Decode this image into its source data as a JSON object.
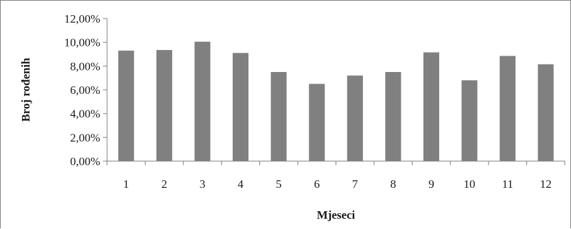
{
  "chart_data": {
    "type": "bar",
    "title": "",
    "xlabel": "Mjeseci",
    "ylabel": "Broj rođenih",
    "categories": [
      "1",
      "2",
      "3",
      "4",
      "5",
      "6",
      "7",
      "8",
      "9",
      "10",
      "11",
      "12"
    ],
    "values": [
      9.3,
      9.35,
      10.05,
      9.1,
      7.5,
      6.5,
      7.2,
      7.5,
      9.15,
      6.8,
      8.85,
      8.15
    ],
    "value_format": "percent_comma_2dec",
    "ylim": [
      0,
      12
    ],
    "yticks": [
      0,
      2,
      4,
      6,
      8,
      10,
      12
    ],
    "ytick_labels": [
      "0,00%",
      "2,00%",
      "4,00%",
      "6,00%",
      "8,00%",
      "10,00%",
      "12,00%"
    ],
    "grid": false,
    "legend": "none",
    "bar_color": "#808080"
  }
}
